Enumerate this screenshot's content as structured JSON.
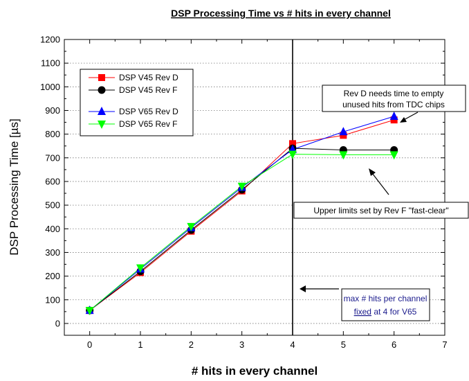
{
  "chart_data": {
    "type": "line",
    "title": "DSP Processing Time  vs   # hits in every channel",
    "xlabel": "#  hits in every channel",
    "ylabel": "DSP Processing Time  [µs]",
    "xlim": [
      -0.5,
      7
    ],
    "ylim": [
      -50,
      1200
    ],
    "x_ticks": [
      "0",
      "1",
      "2",
      "3",
      "4",
      "5",
      "6",
      "7"
    ],
    "y_ticks": [
      "0",
      "100",
      "200",
      "300",
      "400",
      "500",
      "600",
      "700",
      "800",
      "900",
      "1000",
      "1100",
      "1200"
    ],
    "grid": "horizontal dotted",
    "legend_position": "upper-left",
    "x": [
      0,
      1,
      2,
      3,
      4,
      5,
      6
    ],
    "series": [
      {
        "name": "DSP V45  Rev D",
        "values": [
          55,
          215,
          390,
          560,
          760,
          795,
          860
        ],
        "color": "#ff0000",
        "marker": "square"
      },
      {
        "name": "DSP V45  Rev F",
        "values": [
          55,
          220,
          395,
          565,
          740,
          733,
          733
        ],
        "color": "#000000",
        "marker": "circle"
      },
      {
        "name": "DSP V65  Rev D",
        "values": [
          55,
          230,
          405,
          575,
          735,
          810,
          875
        ],
        "color": "#0000ff",
        "marker": "triangle-up"
      },
      {
        "name": "DSP V65  Rev F",
        "values": [
          55,
          235,
          410,
          580,
          715,
          713,
          713
        ],
        "color": "#00ff00",
        "marker": "triangle-down"
      }
    ],
    "vertical_line_x": 4,
    "annotations": {
      "rev_d": [
        "Rev D needs time to empty",
        "unused hits from TDC chips"
      ],
      "upper_limits": "Upper limits set by Rev F \"fast-clear\"",
      "max_hits": {
        "line1": "max # hits per channel",
        "fixed": "fixed",
        "line2_rest": " at 4 for V65"
      }
    }
  }
}
